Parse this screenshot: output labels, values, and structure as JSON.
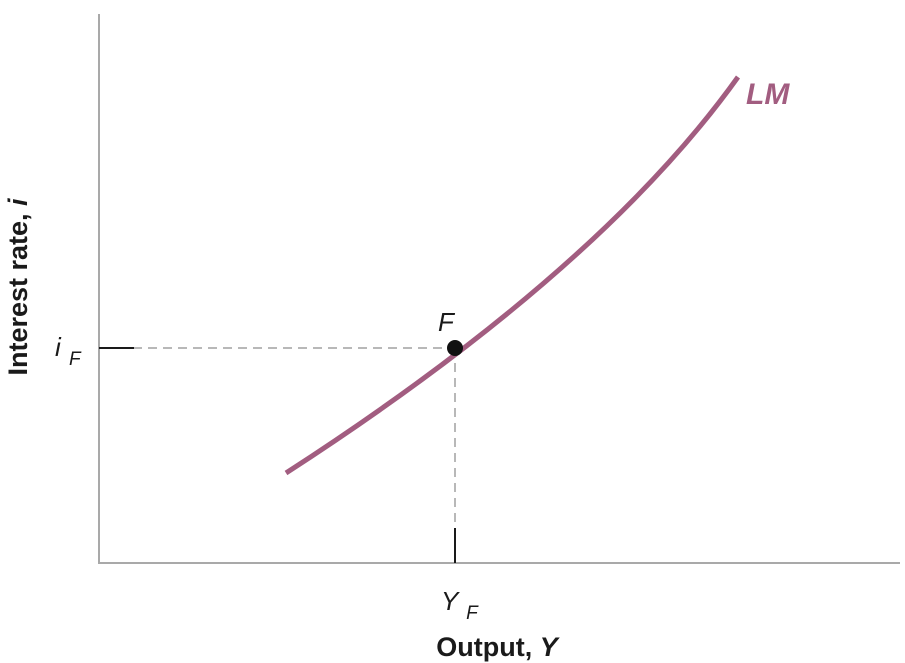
{
  "diagram": {
    "curve_label": "LM",
    "curve_color": "#a25d80",
    "point_label": "F",
    "y_axis_title": "Interest rate,",
    "y_axis_var": "i",
    "x_axis_title": "Output,",
    "x_axis_var": "Y",
    "y_marker_main": "i",
    "y_marker_sub": "F",
    "x_marker_main": "Y",
    "x_marker_sub": "F"
  }
}
